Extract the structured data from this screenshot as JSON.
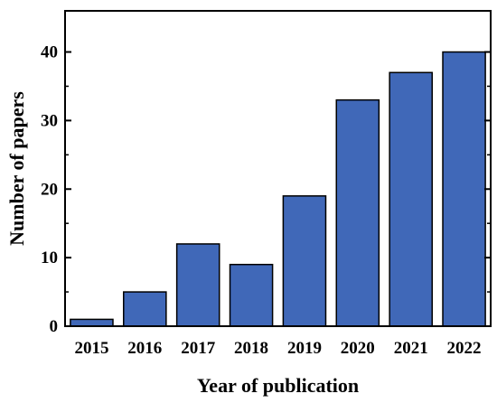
{
  "chart_data": {
    "type": "bar",
    "title": "",
    "categories": [
      "2015",
      "2016",
      "2017",
      "2018",
      "2019",
      "2020",
      "2021",
      "2022"
    ],
    "values": [
      1,
      5,
      12,
      9,
      19,
      33,
      37,
      40
    ],
    "xlabel": "Year of publication",
    "ylabel": "Number of papers",
    "ylim": [
      0,
      46
    ],
    "yticks": [
      "0",
      "10",
      "20",
      "30",
      "40"
    ],
    "grid": false,
    "legend": "none",
    "bar_color": "#4068B8",
    "edge_color": "#000000"
  }
}
